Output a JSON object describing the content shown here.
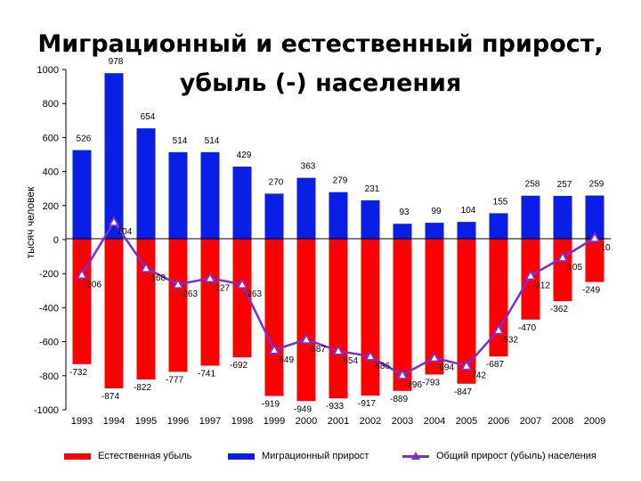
{
  "chart_data": {
    "type": "bar",
    "title_line1": "Миграционный и естественный прирост,",
    "title_line2": "убыль (-) населения",
    "ylabel": "тысяч человек",
    "ylim": [
      -1000,
      1000
    ],
    "ytick_values": [
      1000,
      800,
      600,
      400,
      200,
      0,
      -200,
      -400,
      -600,
      -800,
      -1000
    ],
    "ytick_labels": [
      "1000",
      "800",
      "600",
      "400",
      "200",
      "0",
      "-200",
      "-400",
      "-600",
      "-800",
      "-1000"
    ],
    "categories": [
      "1993",
      "1994",
      "1995",
      "1996",
      "1997",
      "1998",
      "1999",
      "2000",
      "2001",
      "2002",
      "2003",
      "2004",
      "2005",
      "2006",
      "2007",
      "2008",
      "2009"
    ],
    "series": [
      {
        "name": "Естественная убыль",
        "kind": "bar",
        "color": "#ff0000",
        "values": [
          -732,
          -874,
          -822,
          -777,
          -741,
          -692,
          -919,
          -949,
          -933,
          -917,
          -889,
          -793,
          -847,
          -687,
          -470,
          -362,
          -249
        ]
      },
      {
        "name": "Миграционный прирост",
        "kind": "bar",
        "color": "#0a1ee6",
        "values": [
          526,
          978,
          654,
          514,
          514,
          429,
          270,
          363,
          279,
          231,
          93,
          99,
          104,
          155,
          258,
          257,
          259
        ]
      },
      {
        "name": "Общий прирост (убыль) населения",
        "kind": "line",
        "color": "#7b2fd0",
        "values": [
          -206,
          104,
          -168,
          -263,
          -227,
          -263,
          -649,
          -587,
          -654,
          -686,
          -796,
          -694,
          -742,
          -532,
          -212,
          -105,
          10
        ]
      }
    ],
    "legend_position": "bottom"
  }
}
